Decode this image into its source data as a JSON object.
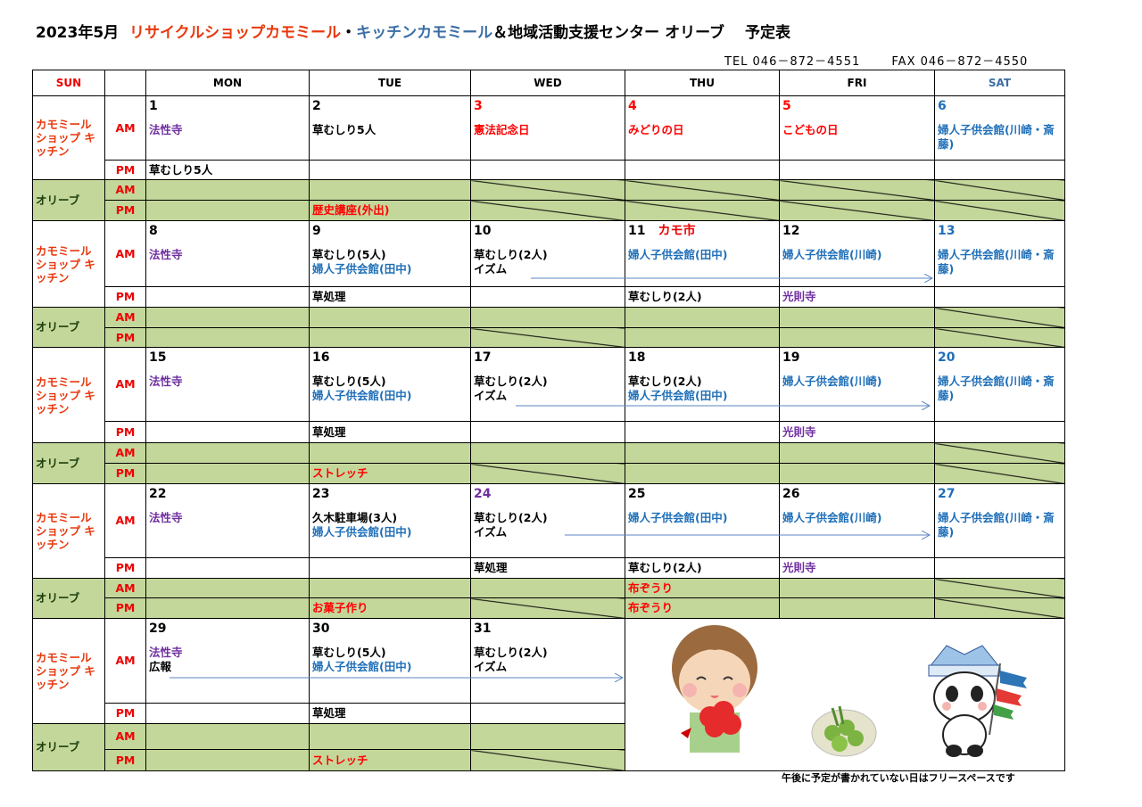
{
  "header": {
    "title_prefix": "2023年5月",
    "title_shop": "リサイクルショップカモミール",
    "title_sep": "・",
    "title_kitchen": "キッチンカモミール",
    "title_suffix": "＆地域活動支援センター オリーブ　 予定表",
    "tel": "TEL 046－872－4551",
    "fax": "FAX 046－872－4550"
  },
  "days_header": [
    "SUN",
    "",
    "MON",
    "TUE",
    "WED",
    "THU",
    "FRI",
    "SAT"
  ],
  "colors": {
    "red": "#ff0000",
    "purple": "#7030a0",
    "blue": "#1f6fb8",
    "olive": "#c4d79b",
    "sat": "#3b6ea5"
  },
  "labels": {
    "kamomile": "カモミール ショップ キッチン",
    "olive": "オリーブ",
    "am": "AM",
    "pm": "PM"
  },
  "weeks": [
    {
      "days": [
        {
          "num": "1",
          "am": [
            {
              "t": "法性寺",
              "c": "purple"
            }
          ],
          "pm": [
            {
              "t": "草むしり5人"
            }
          ]
        },
        {
          "num": "2",
          "am": [
            {
              "t": "草むしり5人"
            }
          ],
          "olive_pm": {
            "t": "歴史講座(外出)",
            "c": "red"
          }
        },
        {
          "num": "3",
          "num_c": "red",
          "am": [
            {
              "t": "憲法記念日",
              "c": "red"
            }
          ],
          "olive_closed": [
            true,
            true
          ]
        },
        {
          "num": "4",
          "num_c": "red",
          "am": [
            {
              "t": "みどりの日",
              "c": "red"
            }
          ],
          "olive_closed": [
            true,
            true
          ]
        },
        {
          "num": "5",
          "num_c": "red",
          "am": [
            {
              "t": "こどもの日",
              "c": "red"
            }
          ],
          "olive_closed": [
            true,
            true
          ]
        },
        {
          "num": "6",
          "num_c": "blue",
          "am": [
            {
              "t": "婦人子供会館(川崎・斎藤)",
              "c": "blue"
            }
          ],
          "olive_closed": [
            true,
            true
          ]
        }
      ]
    },
    {
      "days": [
        {
          "num": "8",
          "am": [
            {
              "t": "法性寺",
              "c": "purple"
            }
          ]
        },
        {
          "num": "9",
          "am": [
            {
              "t": "草むしり(5人)"
            },
            {
              "t": "婦人子供会館(田中)",
              "c": "blue"
            }
          ],
          "pm": [
            {
              "t": "草処理"
            }
          ]
        },
        {
          "num": "10",
          "am": [
            {
              "t": "草むしり(2人)"
            },
            {
              "t": "イズム"
            }
          ],
          "olive_closed": [
            false,
            true
          ]
        },
        {
          "num": "11",
          "event": "カモ市",
          "am": [
            {
              "t": "婦人子供会館(田中)",
              "c": "blue"
            }
          ],
          "pm": [
            {
              "t": "草むしり(2人)"
            }
          ]
        },
        {
          "num": "12",
          "am": [
            {
              "t": "婦人子供会館(川崎)",
              "c": "blue"
            }
          ],
          "pm": [
            {
              "t": "光則寺",
              "c": "purple"
            }
          ]
        },
        {
          "num": "13",
          "num_c": "blue",
          "am": [
            {
              "t": "婦人子供会館(川崎・斎藤)",
              "c": "blue"
            }
          ],
          "olive_closed": [
            true,
            true
          ]
        }
      ]
    },
    {
      "days": [
        {
          "num": "15",
          "am": [
            {
              "t": "法性寺",
              "c": "purple"
            }
          ]
        },
        {
          "num": "16",
          "am": [
            {
              "t": "草むしり(5人)"
            },
            {
              "t": "婦人子供会館(田中)",
              "c": "blue"
            }
          ],
          "pm": [
            {
              "t": "草処理"
            }
          ],
          "olive_pm": {
            "t": "ストレッチ",
            "c": "red"
          }
        },
        {
          "num": "17",
          "am": [
            {
              "t": "草むしり(2人)"
            },
            {
              "t": "イズム"
            }
          ],
          "olive_closed": [
            false,
            true
          ]
        },
        {
          "num": "18",
          "am": [
            {
              "t": "草むしり(2人)"
            },
            {
              "t": "婦人子供会館(田中)",
              "c": "blue"
            }
          ]
        },
        {
          "num": "19",
          "am": [
            {
              "t": "婦人子供会館(川崎)",
              "c": "blue"
            }
          ],
          "pm": [
            {
              "t": "光則寺",
              "c": "purple"
            }
          ]
        },
        {
          "num": "20",
          "num_c": "blue",
          "am": [
            {
              "t": "婦人子供会館(川崎・斎藤)",
              "c": "blue"
            }
          ],
          "olive_closed": [
            true,
            true
          ]
        }
      ]
    },
    {
      "days": [
        {
          "num": "22",
          "am": [
            {
              "t": "法性寺",
              "c": "purple"
            }
          ]
        },
        {
          "num": "23",
          "am": [
            {
              "t": "久木駐車場(3人)"
            },
            {
              "t": "婦人子供会館(田中)",
              "c": "blue"
            }
          ],
          "olive_pm": {
            "t": "お菓子作り",
            "c": "red"
          }
        },
        {
          "num": "24",
          "num_c": "purple",
          "am": [
            {
              "t": "草むしり(2人)"
            },
            {
              "t": "イズム"
            }
          ],
          "pm": [
            {
              "t": "草処理"
            }
          ],
          "olive_closed": [
            false,
            true
          ]
        },
        {
          "num": "25",
          "am": [
            {
              "t": "婦人子供会館(田中)",
              "c": "blue"
            }
          ],
          "pm": [
            {
              "t": "草むしり(2人)"
            }
          ],
          "olive_am": {
            "t": "布ぞうり",
            "c": "red"
          },
          "olive_pm": {
            "t": "布ぞうり",
            "c": "red"
          }
        },
        {
          "num": "26",
          "am": [
            {
              "t": "婦人子供会館(川崎)",
              "c": "blue"
            }
          ],
          "pm": [
            {
              "t": "光則寺",
              "c": "purple"
            }
          ]
        },
        {
          "num": "27",
          "num_c": "blue",
          "am": [
            {
              "t": "婦人子供会館(川崎・斎藤)",
              "c": "blue"
            }
          ],
          "olive_closed": [
            true,
            true
          ]
        }
      ]
    },
    {
      "days": [
        {
          "num": "29",
          "am": [
            {
              "t": "法性寺",
              "c": "purple"
            },
            {
              "t": "広報"
            }
          ]
        },
        {
          "num": "30",
          "am": [
            {
              "t": "草むしり(5人)"
            },
            {
              "t": "婦人子供会館(田中)",
              "c": "blue"
            }
          ],
          "pm": [
            {
              "t": "草処理"
            }
          ],
          "olive_pm": {
            "t": "ストレッチ",
            "c": "red"
          }
        },
        {
          "num": "31",
          "am": [
            {
              "t": "草むしり(2人)"
            },
            {
              "t": "イズム"
            }
          ],
          "olive_closed": [
            false,
            true
          ]
        }
      ]
    }
  ],
  "illustrations": [
    "girl-with-flowers",
    "kusamochi-plate",
    "panda-with-kabuto-and-koinobori"
  ],
  "footer_note": "午後に予定が書かれていない日はフリースペースです"
}
